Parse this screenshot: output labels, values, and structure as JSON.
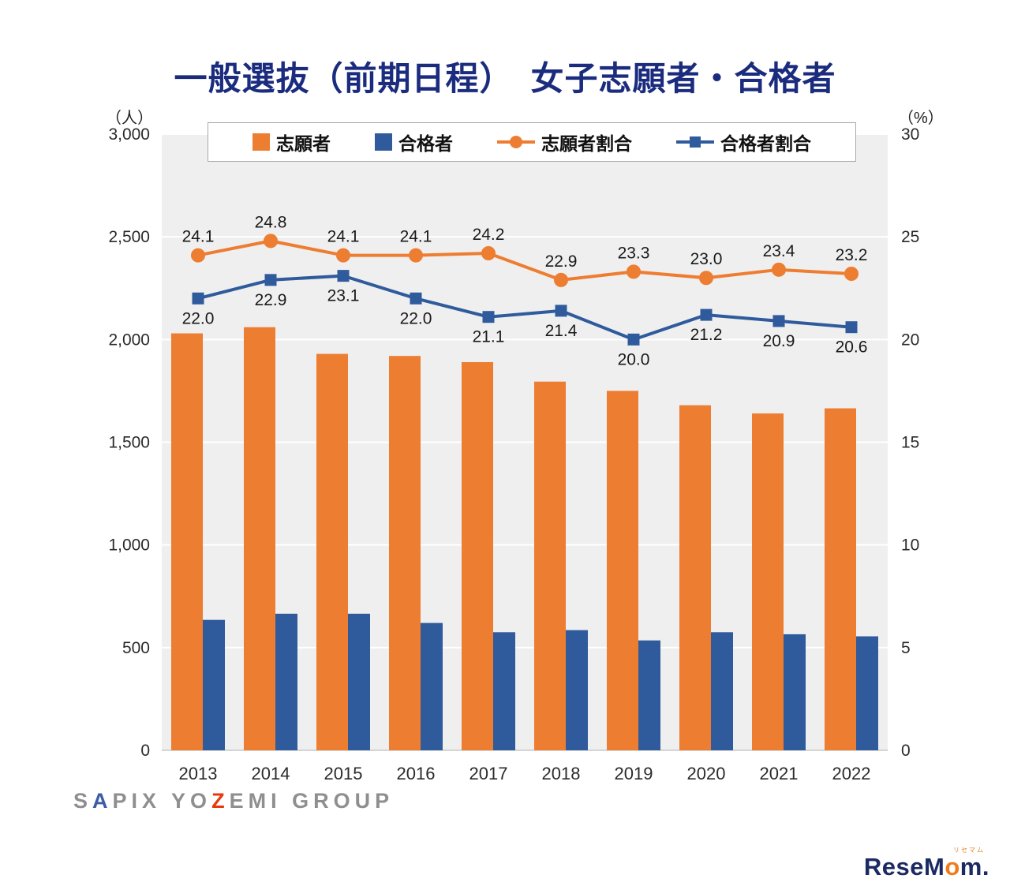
{
  "title": "一般選抜（前期日程）　女子志願者・合格者",
  "axis_units": {
    "left": "（人）",
    "right": "（%）"
  },
  "legend": [
    {
      "key": "applicants",
      "label": "志願者",
      "type": "bar",
      "color": "#ED7D31"
    },
    {
      "key": "admitted",
      "label": "合格者",
      "type": "bar",
      "color": "#2F5B9D"
    },
    {
      "key": "applicant-ratio",
      "label": "志願者割合",
      "type": "line-circle",
      "color": "#ED7D31"
    },
    {
      "key": "admitted-ratio",
      "label": "合格者割合",
      "type": "line-square",
      "color": "#2F5B9D"
    }
  ],
  "chart_data": {
    "type": "bar+line",
    "title": "一般選抜（前期日程）　女子志願者・合格者",
    "categories": [
      "2013",
      "2014",
      "2015",
      "2016",
      "2017",
      "2018",
      "2019",
      "2020",
      "2021",
      "2022"
    ],
    "series": [
      {
        "key": "applicants",
        "name": "志願者",
        "type": "bar",
        "axis": "left",
        "color": "#ED7D31",
        "values": [
          2030,
          2060,
          1930,
          1920,
          1890,
          1795,
          1750,
          1680,
          1640,
          1665
        ]
      },
      {
        "key": "admitted",
        "name": "合格者",
        "type": "bar",
        "axis": "left",
        "color": "#2F5B9D",
        "values": [
          635,
          665,
          665,
          620,
          575,
          585,
          535,
          575,
          565,
          555
        ]
      },
      {
        "key": "applicant-ratio",
        "name": "志願者割合",
        "type": "line",
        "marker": "circle",
        "axis": "right",
        "color": "#ED7D31",
        "values": [
          24.1,
          24.8,
          24.1,
          24.1,
          24.2,
          22.9,
          23.3,
          23.0,
          23.4,
          23.2
        ]
      },
      {
        "key": "admitted-ratio",
        "name": "合格者割合",
        "type": "line",
        "marker": "square",
        "axis": "right",
        "color": "#2F5B9D",
        "values": [
          22.0,
          22.9,
          23.1,
          22.0,
          21.1,
          21.4,
          20.0,
          21.2,
          20.9,
          20.6
        ]
      }
    ],
    "left_axis": {
      "min": 0,
      "max": 3000,
      "step": 500,
      "tick_labels": [
        "0",
        "500",
        "1,000",
        "1,500",
        "2,000",
        "2,500",
        "3,000"
      ]
    },
    "right_axis": {
      "min": 0,
      "max": 30,
      "step": 5,
      "tick_labels": [
        "0",
        "5",
        "10",
        "15",
        "20",
        "25",
        "30"
      ]
    },
    "plot_bg": "#EFEFEF",
    "grid_color": "#FFFFFF",
    "grid": true,
    "legend_position": "top"
  },
  "footer": {
    "sapix_logo_parts": [
      {
        "text": "S",
        "color": "#8f8f8f"
      },
      {
        "text": "A",
        "color": "#3C5CA8"
      },
      {
        "text": "PIX YO",
        "color": "#8f8f8f"
      },
      {
        "text": "Z",
        "color": "#E8380D"
      },
      {
        "text": "EMI GROUP",
        "color": "#8f8f8f"
      }
    ],
    "resemom_ruby": "リセマム",
    "resemom_parts": [
      {
        "text": "Rese",
        "color": "#1B2A63"
      },
      {
        "text": "M",
        "color": "#1B2A63"
      },
      {
        "text": "o",
        "color": "#EE7B1D"
      },
      {
        "text": "m",
        "color": "#1B2A63"
      },
      {
        "text": ".",
        "color": "#1B2A63"
      }
    ]
  }
}
